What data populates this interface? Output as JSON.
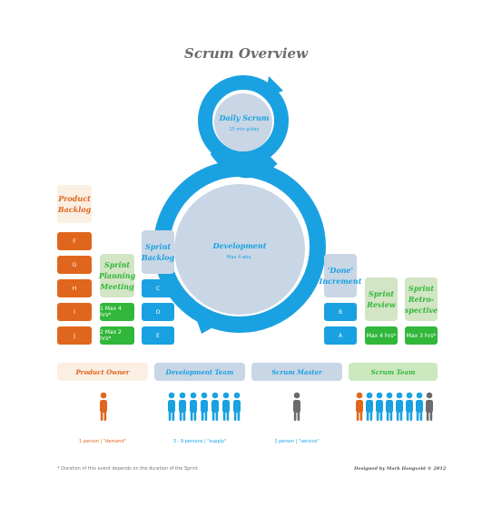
{
  "title": "Scrum Overview",
  "colors": {
    "orange": "#e0661e",
    "blue": "#1aa1e1",
    "green": "#31b73a",
    "gray": "#6b6b6b",
    "lightblue": "#c9d6e6",
    "lightorange": "#fbeee3",
    "lightgreen": "#d2e5c5",
    "lightgreen2": "#cce8bf"
  },
  "daily_scrum": {
    "label": "Daily Scrum",
    "sub": "15 min p/day"
  },
  "development": {
    "label": "Development",
    "sub": "Max 4 wks."
  },
  "product_backlog": {
    "label": "Product Backlog",
    "items": [
      "F",
      "G",
      "H",
      "I",
      "J"
    ]
  },
  "sprint_planning": {
    "label": "Sprint Planning Meeting",
    "items": [
      "1 Max 4 hrs*",
      "2 Max 2 hrs*"
    ]
  },
  "sprint_backlog": {
    "label": "Sprint Backlog",
    "items": [
      "C",
      "D",
      "E"
    ]
  },
  "done_increment": {
    "label": "'Done' Increment",
    "items": [
      "B",
      "A"
    ]
  },
  "sprint_review": {
    "label": "Sprint Review",
    "items": [
      "Max 4 hrs*"
    ]
  },
  "sprint_retro": {
    "label": "Sprint Retro-spective",
    "items": [
      "Max 3 hrs*"
    ]
  },
  "roles": [
    {
      "label": "Product Owner",
      "caption": "1 person | \"demand\""
    },
    {
      "label": "Development Team",
      "caption": "3 - 9 persons | \"supply\""
    },
    {
      "label": "Scrum Master",
      "caption": "1 person | \"service\""
    },
    {
      "label": "Scrum Team",
      "caption": ""
    }
  ],
  "footnote": "* Duration of this event depends on the duration of the Sprint",
  "credit": "Designed by Mark Hoogveld © 2012"
}
